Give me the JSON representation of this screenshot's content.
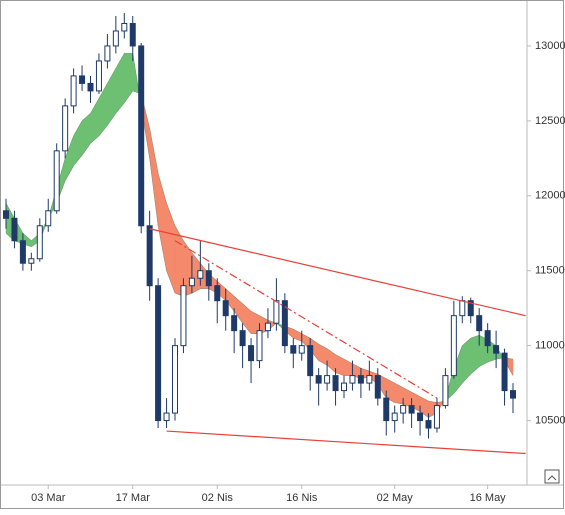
{
  "chart_data": {
    "type": "candlestick",
    "categories": [
      null,
      null,
      null,
      null,
      null,
      "03 Mar",
      null,
      null,
      null,
      null,
      null,
      null,
      null,
      null,
      null,
      "17 Mar",
      null,
      null,
      null,
      null,
      null,
      null,
      null,
      null,
      null,
      "02 Nis",
      null,
      null,
      null,
      null,
      null,
      null,
      null,
      null,
      null,
      "16 Nis",
      null,
      null,
      null,
      null,
      null,
      null,
      null,
      null,
      null,
      null,
      "02 May",
      null,
      null,
      null,
      null,
      null,
      null,
      null,
      null,
      null,
      null,
      "16 May",
      null,
      null,
      null
    ],
    "open": [
      11900,
      11850,
      11700,
      11550,
      11580,
      11800,
      11900,
      12300,
      12600,
      12800,
      12750,
      12700,
      12900,
      13000,
      13100,
      13150,
      13000,
      11800,
      11400,
      10500,
      10550,
      11000,
      11400,
      11450,
      11500,
      11400,
      11300,
      11200,
      11100,
      11000,
      10900,
      11100,
      11150,
      11300,
      11000,
      10950,
      11000,
      10800,
      10750,
      10800,
      10700,
      10750,
      10800,
      10750,
      10800,
      10650,
      10500,
      10550,
      10600,
      10550,
      10500,
      10450,
      10600,
      10800,
      11200,
      11300,
      11200,
      11100,
      11000,
      10950,
      10700
    ],
    "high": [
      11980,
      11900,
      11750,
      11620,
      11850,
      11980,
      12350,
      12650,
      12850,
      12870,
      12800,
      12950,
      13080,
      13200,
      13220,
      13200,
      13020,
      11900,
      11450,
      10650,
      11050,
      11450,
      11600,
      11700,
      11550,
      11450,
      11380,
      11250,
      11150,
      11050,
      11150,
      11250,
      11450,
      11350,
      11050,
      11100,
      11050,
      10850,
      10900,
      10850,
      10800,
      10900,
      10850,
      10900,
      10850,
      10700,
      10600,
      10650,
      10650,
      10600,
      10550,
      10650,
      10850,
      11300,
      11330,
      11320,
      11250,
      11150,
      11100,
      10980,
      10750
    ],
    "low": [
      11780,
      11650,
      11500,
      11500,
      11560,
      11760,
      11880,
      12250,
      12550,
      12700,
      12620,
      12680,
      12850,
      12950,
      13050,
      12900,
      11750,
      11300,
      10450,
      10450,
      10500,
      10950,
      11350,
      11400,
      11300,
      11150,
      11100,
      10950,
      10850,
      10750,
      10850,
      11050,
      11100,
      10950,
      10850,
      10900,
      10700,
      10600,
      10700,
      10600,
      10650,
      10700,
      10650,
      10700,
      10600,
      10400,
      10420,
      10480,
      10450,
      10400,
      10380,
      10420,
      10580,
      10780,
      11150,
      11150,
      11000,
      10950,
      10850,
      10600,
      10550
    ],
    "close": [
      11850,
      11700,
      11550,
      11580,
      11800,
      11900,
      12300,
      12600,
      12800,
      12750,
      12700,
      12900,
      13000,
      13100,
      13150,
      13000,
      11800,
      11400,
      10500,
      10550,
      11000,
      11400,
      11450,
      11500,
      11400,
      11300,
      11200,
      11100,
      11000,
      10900,
      11100,
      11150,
      11300,
      11000,
      10950,
      11000,
      10800,
      10750,
      10800,
      10700,
      10750,
      10800,
      10750,
      10800,
      10650,
      10500,
      10550,
      10600,
      10550,
      10500,
      10450,
      10600,
      10800,
      11200,
      11300,
      11200,
      11100,
      11000,
      10950,
      10700,
      10650
    ],
    "up_color": "#ffffff",
    "down_color": "#1f3a68",
    "bands": {
      "fast": [
        11950,
        11850,
        11750,
        11700,
        11750,
        11850,
        12050,
        12250,
        12400,
        12500,
        12550,
        12650,
        12750,
        12850,
        12950,
        12950,
        12600,
        12250,
        11800,
        11500,
        11350,
        11330,
        11350,
        11380,
        11380,
        11350,
        11300,
        11230,
        11150,
        11080,
        11080,
        11100,
        11150,
        11100,
        11050,
        11030,
        10970,
        10900,
        10870,
        10820,
        10800,
        10800,
        10780,
        10790,
        10740,
        10650,
        10620,
        10610,
        10590,
        10560,
        10520,
        10550,
        10650,
        10850,
        11000,
        11050,
        11070,
        11040,
        11000,
        10900,
        10800
      ],
      "slow": [
        11750,
        11700,
        11680,
        11660,
        11700,
        11850,
        11950,
        12100,
        12200,
        12270,
        12350,
        12400,
        12470,
        12550,
        12620,
        12700,
        12680,
        12450,
        12150,
        11950,
        11800,
        11700,
        11620,
        11550,
        11480,
        11430,
        11380,
        11330,
        11280,
        11230,
        11200,
        11170,
        11150,
        11130,
        11110,
        11080,
        11050,
        11010,
        10980,
        10940,
        10910,
        10880,
        10850,
        10830,
        10810,
        10780,
        10750,
        10720,
        10690,
        10660,
        10630,
        10620,
        10630,
        10680,
        10750,
        10810,
        10860,
        10890,
        10910,
        10920,
        10910
      ],
      "up_color": "#6dbf72",
      "down_color": "#f4896b"
    },
    "trendlines": [
      {
        "x": [
          17,
          61.5
        ],
        "y": [
          11780,
          11200
        ],
        "color": "#e8403a",
        "dash": false
      },
      {
        "x": [
          19,
          61.5
        ],
        "y": [
          10430,
          10280
        ],
        "color": "#e8403a",
        "dash": false
      },
      {
        "x": [
          20,
          51
        ],
        "y": [
          11700,
          10650
        ],
        "color": "#e8403a",
        "dash": true
      }
    ],
    "ylim": [
      10070,
      13300
    ],
    "yticks": [
      10500,
      11000,
      11500,
      12000,
      12500,
      13000
    ]
  }
}
